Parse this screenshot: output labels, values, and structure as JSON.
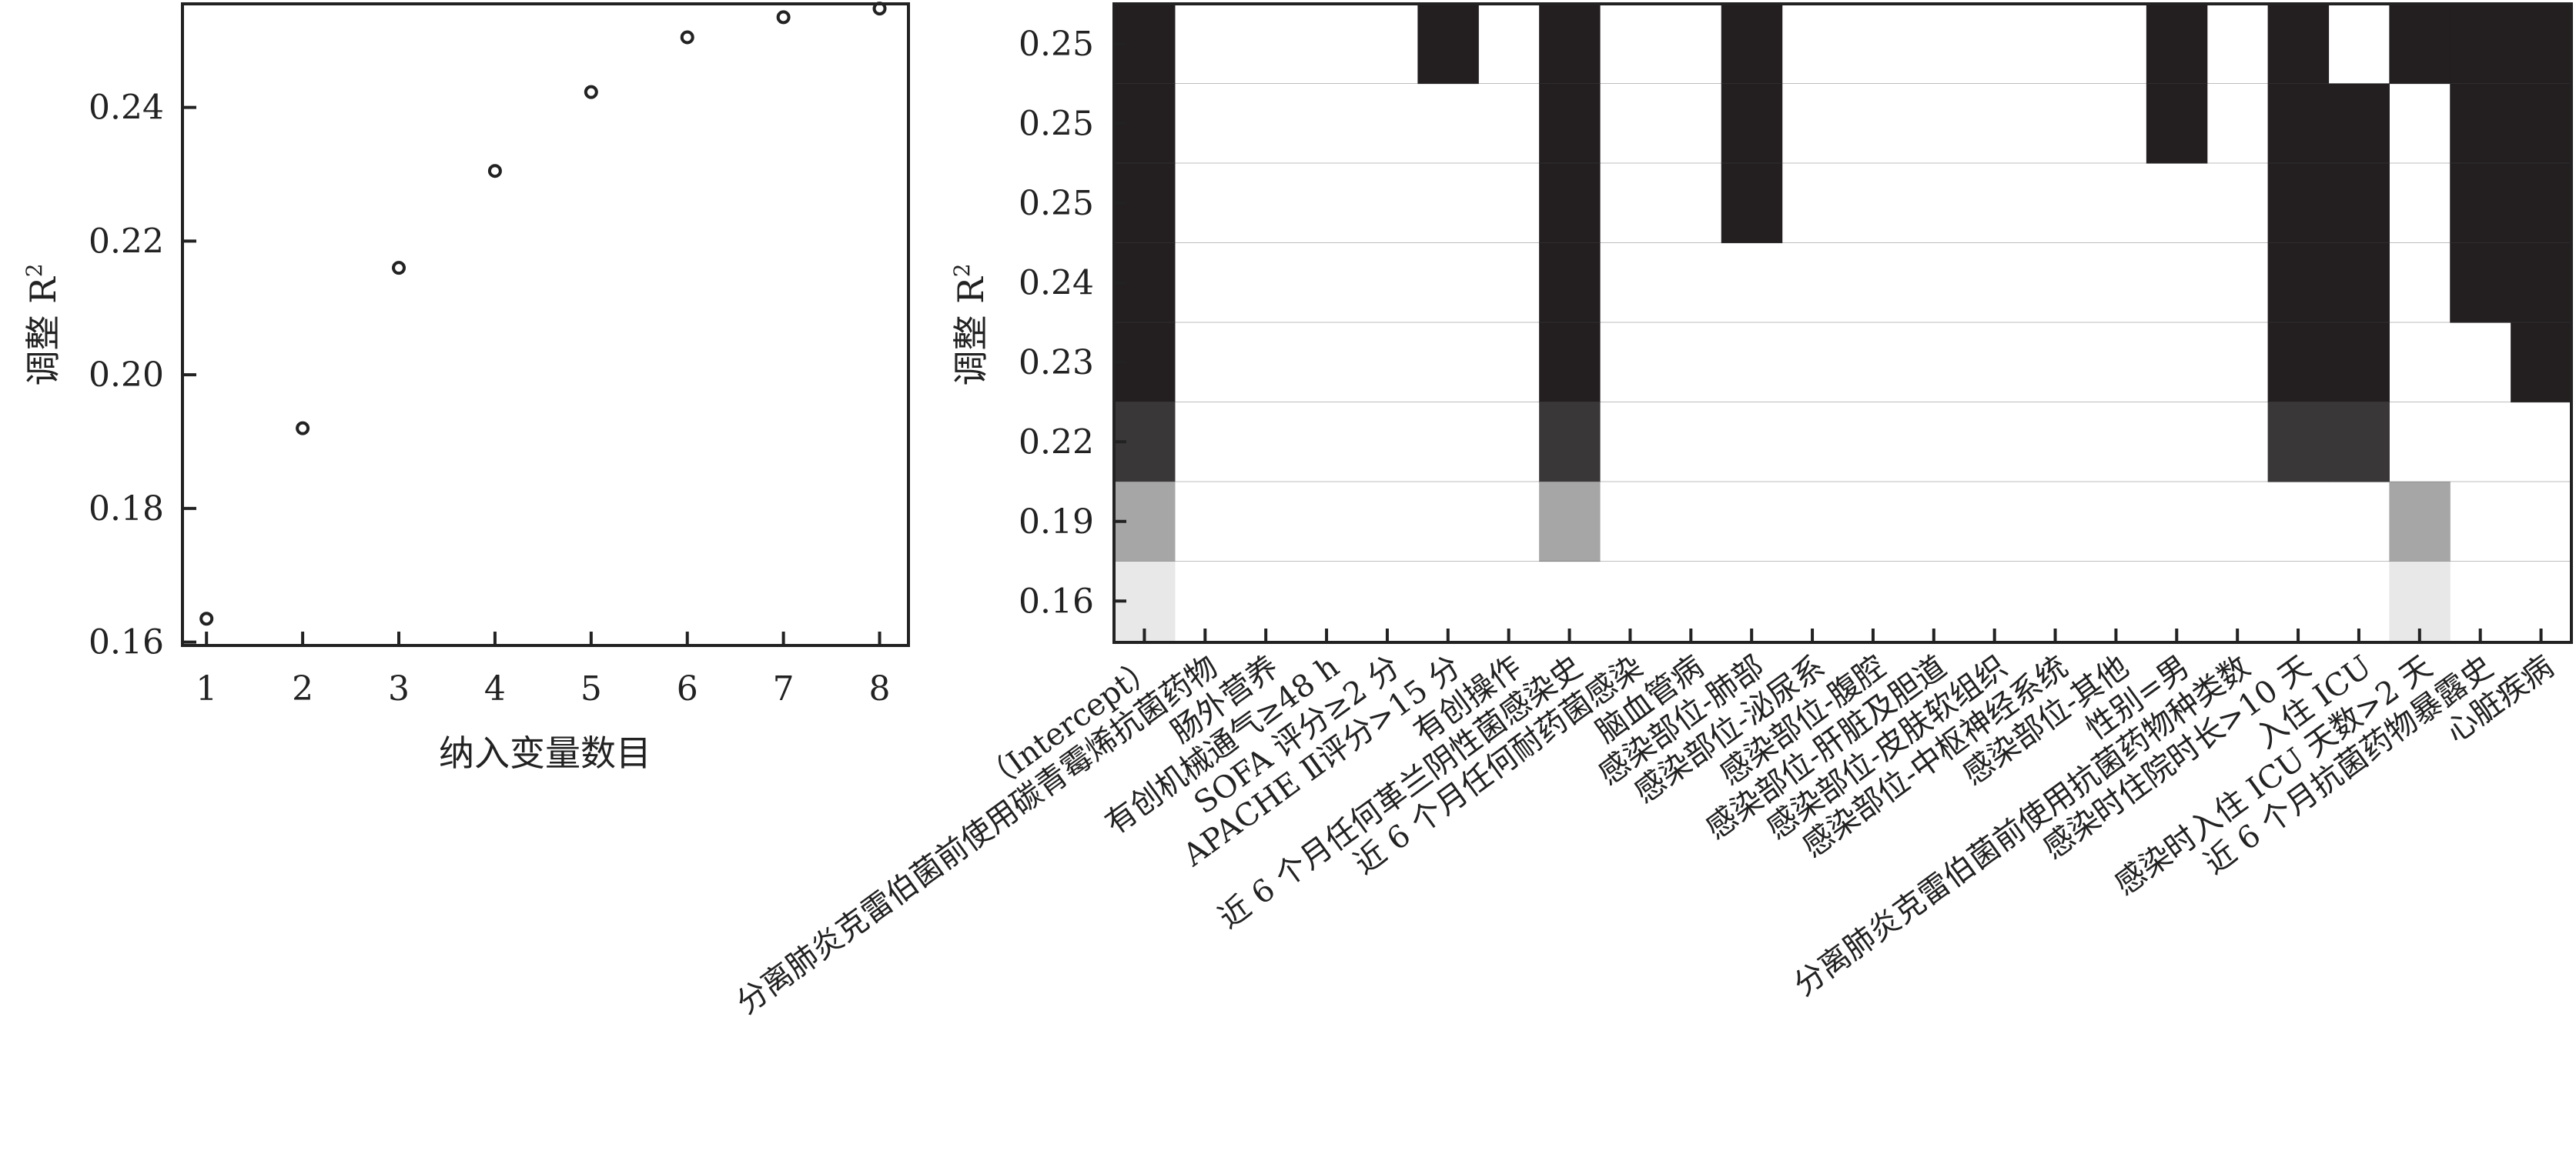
{
  "chart_data": [
    {
      "type": "scatter",
      "xlabel": "纳入变量数目",
      "ylabel": "调整 R",
      "ylabel_sup": "2",
      "x_ticks": [
        1,
        2,
        3,
        4,
        5,
        6,
        7,
        8
      ],
      "y_ticks": [
        "0.16",
        "0.18",
        "0.20",
        "0.22",
        "0.24"
      ],
      "xlim": [
        0.75,
        8.3
      ],
      "ylim": [
        0.1595,
        0.2555
      ],
      "marker": "open-circle",
      "x": [
        1,
        2,
        3,
        4,
        5,
        6,
        7,
        8
      ],
      "y": [
        0.1635,
        0.192,
        0.216,
        0.2305,
        0.2423,
        0.2505,
        0.2535,
        0.2548
      ]
    },
    {
      "type": "heatmap",
      "ylabel": "调整 R",
      "ylabel_sup": "2",
      "row_labels": [
        "0.25",
        "0.25",
        "0.25",
        "0.24",
        "0.23",
        "0.22",
        "0.19",
        "0.16"
      ],
      "columns": [
        "（Intercept）",
        "分离肺炎克雷伯菌前使用碳青霉烯抗菌药物",
        "肠外营养",
        "有创机械通气≥48 h",
        "SOFA 评分≥2 分",
        "APACHE Ⅱ评分>15 分",
        "有创操作",
        "近 6 个月任何革兰阴性菌感染史",
        "近 6 个月任何耐药菌感染",
        "脑血管病",
        "感染部位-肺部",
        "感染部位-泌尿系",
        "感染部位-腹腔",
        "感染部位-肝脏及胆道",
        "感染部位-皮肤软组织",
        "感染部位-中枢神经系统",
        "感染部位-其他",
        "性别=男",
        "分离肺炎克雷伯菌前使用抗菌药物种类数",
        "感染时住院时长>10 天",
        "入住 ICU",
        "感染时入住 ICU 天数>2 天",
        "近 6 个月抗菌药物暴露史",
        "心脏疾病"
      ],
      "row_colors": [
        "#231f20",
        "#231f20",
        "#231f20",
        "#231f20",
        "#231f20",
        "#3a3738",
        "#a6a6a6",
        "#e8e8e8"
      ],
      "cells": [
        [
          1,
          0,
          0,
          0,
          0,
          1,
          0,
          1,
          0,
          0,
          1,
          0,
          0,
          0,
          0,
          0,
          0,
          1,
          0,
          1,
          0,
          1,
          1,
          1
        ],
        [
          1,
          0,
          0,
          0,
          0,
          0,
          0,
          1,
          0,
          0,
          1,
          0,
          0,
          0,
          0,
          0,
          0,
          1,
          0,
          1,
          1,
          0,
          1,
          1
        ],
        [
          1,
          0,
          0,
          0,
          0,
          0,
          0,
          1,
          0,
          0,
          1,
          0,
          0,
          0,
          0,
          0,
          0,
          0,
          0,
          1,
          1,
          0,
          1,
          1
        ],
        [
          1,
          0,
          0,
          0,
          0,
          0,
          0,
          1,
          0,
          0,
          0,
          0,
          0,
          0,
          0,
          0,
          0,
          0,
          0,
          1,
          1,
          0,
          1,
          1
        ],
        [
          1,
          0,
          0,
          0,
          0,
          0,
          0,
          1,
          0,
          0,
          0,
          0,
          0,
          0,
          0,
          0,
          0,
          0,
          0,
          1,
          1,
          0,
          0,
          1
        ],
        [
          1,
          0,
          0,
          0,
          0,
          0,
          0,
          1,
          0,
          0,
          0,
          0,
          0,
          0,
          0,
          0,
          0,
          0,
          0,
          1,
          1,
          0,
          0,
          0
        ],
        [
          1,
          0,
          0,
          0,
          0,
          0,
          0,
          1,
          0,
          0,
          0,
          0,
          0,
          0,
          0,
          0,
          0,
          0,
          0,
          0,
          0,
          1,
          0,
          0
        ],
        [
          1,
          0,
          0,
          0,
          0,
          0,
          0,
          0,
          0,
          0,
          0,
          0,
          0,
          0,
          0,
          0,
          0,
          0,
          0,
          0,
          0,
          1,
          0,
          0
        ]
      ]
    }
  ]
}
